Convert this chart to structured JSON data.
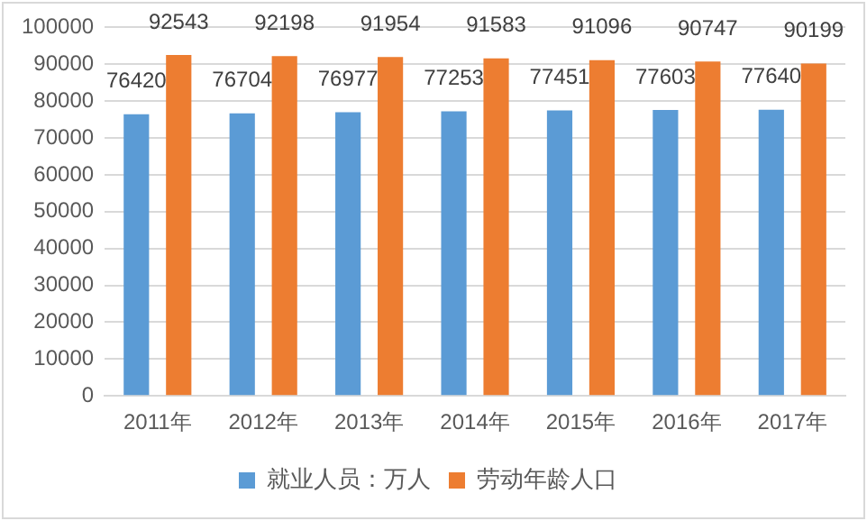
{
  "chart_data": {
    "type": "bar",
    "categories": [
      "2011年",
      "2012年",
      "2013年",
      "2014年",
      "2015年",
      "2016年",
      "2017年"
    ],
    "series": [
      {
        "name": "就业人员：万人",
        "color": "#5b9bd5",
        "values": [
          76420,
          76704,
          76977,
          77253,
          77451,
          77603,
          77640
        ]
      },
      {
        "name": "劳动年龄人口",
        "color": "#ed7d31",
        "values": [
          92543,
          92198,
          91954,
          91583,
          91096,
          90747,
          90199
        ]
      }
    ],
    "ylim": [
      0,
      100000
    ],
    "yticks": [
      0,
      10000,
      20000,
      30000,
      40000,
      50000,
      60000,
      70000,
      80000,
      90000,
      100000
    ],
    "grid": "y",
    "legend": "bottom",
    "data_labels": true
  }
}
